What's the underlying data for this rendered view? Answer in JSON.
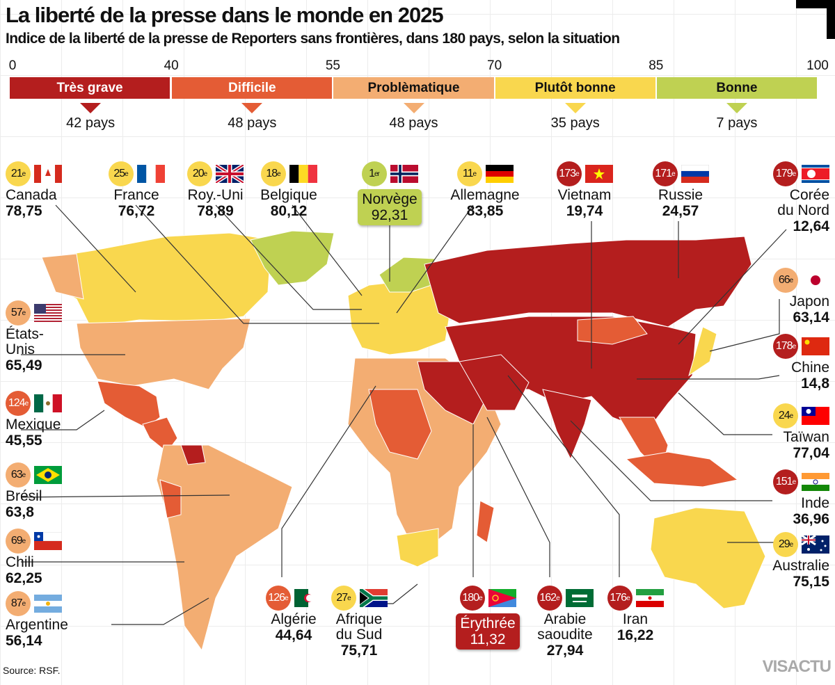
{
  "title": "La liberté de la presse dans le monde en 2025",
  "subtitle": "Indice de la liberté de la presse de Reporters sans frontières, dans 180 pays, selon la situation",
  "scale": {
    "ticks": [
      "0",
      "40",
      "55",
      "70",
      "85",
      "100"
    ],
    "categories": [
      {
        "label": "Très grave",
        "count": "42 pays",
        "color": "#b41e1e",
        "text_color": "#ffffff"
      },
      {
        "label": "Difficile",
        "count": "48 pays",
        "color": "#e45c35",
        "text_color": "#ffffff"
      },
      {
        "label": "Problèmatique",
        "count": "48 pays",
        "color": "#f3ad72",
        "text_color": "#111111"
      },
      {
        "label": "Plutôt bonne",
        "count": "35 pays",
        "color": "#f9d74e",
        "text_color": "#111111"
      },
      {
        "label": "Bonne",
        "count": "7 pays",
        "color": "#bfd152",
        "text_color": "#111111"
      }
    ]
  },
  "countries": [
    {
      "name": "Canada",
      "rank": "21",
      "suffix": "e",
      "score": "78,75",
      "category": 3,
      "flag": "canada-flag"
    },
    {
      "name": "France",
      "rank": "25",
      "suffix": "e",
      "score": "76,72",
      "category": 3,
      "flag": "france-flag"
    },
    {
      "name": "Roy.-Uni",
      "rank": "20",
      "suffix": "e",
      "score": "78,89",
      "category": 3,
      "flag": "uk-flag"
    },
    {
      "name": "Belgique",
      "rank": "18",
      "suffix": "e",
      "score": "80,12",
      "category": 3,
      "flag": "belgium-flag"
    },
    {
      "name": "Norvège",
      "rank": "1",
      "suffix": "er",
      "score": "92,31",
      "category": 4,
      "flag": "norway-flag"
    },
    {
      "name": "Allemagne",
      "rank": "11",
      "suffix": "e",
      "score": "83,85",
      "category": 3,
      "flag": "germany-flag"
    },
    {
      "name": "Vietnam",
      "rank": "173",
      "suffix": "e",
      "score": "19,74",
      "category": 0,
      "flag": "vietnam-flag"
    },
    {
      "name": "Russie",
      "rank": "171",
      "suffix": "e",
      "score": "24,57",
      "category": 0,
      "flag": "russia-flag"
    },
    {
      "name": "Corée du Nord",
      "rank": "179",
      "suffix": "e",
      "score": "12,64",
      "category": 0,
      "flag": "north-korea-flag"
    },
    {
      "name": "Japon",
      "rank": "66",
      "suffix": "e",
      "score": "63,14",
      "category": 2,
      "flag": "japan-flag"
    },
    {
      "name": "Chine",
      "rank": "178",
      "suffix": "e",
      "score": "14,8",
      "category": 0,
      "flag": "china-flag"
    },
    {
      "name": "Taïwan",
      "rank": "24",
      "suffix": "e",
      "score": "77,04",
      "category": 3,
      "flag": "taiwan-flag"
    },
    {
      "name": "Inde",
      "rank": "151",
      "suffix": "e",
      "score": "36,96",
      "category": 0,
      "flag": "india-flag"
    },
    {
      "name": "Australie",
      "rank": "29",
      "suffix": "e",
      "score": "75,15",
      "category": 3,
      "flag": "australia-flag"
    },
    {
      "name": "États-Unis",
      "rank": "57",
      "suffix": "e",
      "score": "65,49",
      "category": 2,
      "flag": "usa-flag"
    },
    {
      "name": "Mexique",
      "rank": "124",
      "suffix": "e",
      "score": "45,55",
      "category": 1,
      "flag": "mexico-flag"
    },
    {
      "name": "Brésil",
      "rank": "63",
      "suffix": "e",
      "score": "63,8",
      "category": 2,
      "flag": "brazil-flag"
    },
    {
      "name": "Chili",
      "rank": "69",
      "suffix": "e",
      "score": "62,25",
      "category": 2,
      "flag": "chile-flag"
    },
    {
      "name": "Argentine",
      "rank": "87",
      "suffix": "e",
      "score": "56,14",
      "category": 2,
      "flag": "argentina-flag"
    },
    {
      "name": "Algérie",
      "rank": "126",
      "suffix": "e",
      "score": "44,64",
      "category": 1,
      "flag": "algeria-flag"
    },
    {
      "name": "Afrique du Sud",
      "rank": "27",
      "suffix": "e",
      "score": "75,71",
      "category": 3,
      "flag": "south-africa-flag"
    },
    {
      "name": "Érythrée",
      "rank": "180",
      "suffix": "e",
      "score": "11,32",
      "category": 0,
      "flag": "eritrea-flag"
    },
    {
      "name": "Arabie saoudite",
      "rank": "162",
      "suffix": "e",
      "score": "27,94",
      "category": 0,
      "flag": "saudi-arabia-flag"
    },
    {
      "name": "Iran",
      "rank": "176",
      "suffix": "e",
      "score": "16,22",
      "category": 0,
      "flag": "iran-flag"
    }
  ],
  "source": "Source: RSF.",
  "logo": "VISACTU"
}
